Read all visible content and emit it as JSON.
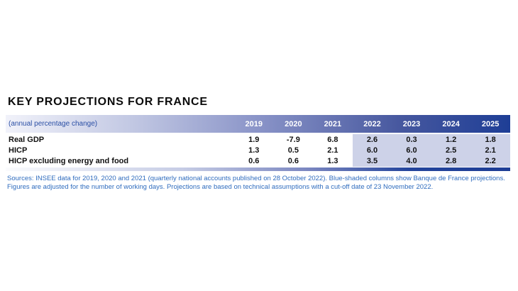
{
  "title": "KEY PROJECTIONS FOR FRANCE",
  "table": {
    "unit_label": "(annual percentage change)",
    "years": [
      "2019",
      "2020",
      "2021",
      "2022",
      "2023",
      "2024",
      "2025"
    ],
    "rows": [
      {
        "label": "Real GDP",
        "values": [
          "1.9",
          "-7.9",
          "6.8",
          "2.6",
          "0.3",
          "1.2",
          "1.8"
        ]
      },
      {
        "label": "HICP",
        "values": [
          "1.3",
          "0.5",
          "2.1",
          "6.0",
          "6.0",
          "2.5",
          "2.1"
        ]
      },
      {
        "label": "HICP excluding energy and food",
        "values": [
          "0.6",
          "0.6",
          "1.3",
          "3.5",
          "4.0",
          "2.8",
          "2.2"
        ]
      }
    ],
    "projection_start_index": 3
  },
  "footnote": {
    "line1": "Sources: INSEE data for 2019, 2020 and 2021 (quarterly national accounts published on 28 October 2022). Blue-shaded columns show Banque de France projections.",
    "line2": "Figures are adjusted for the number of working days. Projections are based on technical assumptions with a cut-off date of 23 November 2022."
  },
  "colors": {
    "header_gradient_start": "#f1f2fa",
    "header_gradient_end": "#1e3e96",
    "projection_shade": "#cdd2e8",
    "unit_text": "#2b4fa5",
    "note_text": "#2f6cbe",
    "title_text": "#0b0b0b",
    "value_text": "#111111"
  },
  "chart_data": {
    "type": "table",
    "title": "KEY PROJECTIONS FOR FRANCE",
    "unit": "annual percentage change",
    "columns": [
      "2019",
      "2020",
      "2021",
      "2022",
      "2023",
      "2024",
      "2025"
    ],
    "rows": [
      {
        "name": "Real GDP",
        "values": [
          1.9,
          -7.9,
          6.8,
          2.6,
          0.3,
          1.2,
          1.8
        ]
      },
      {
        "name": "HICP",
        "values": [
          1.3,
          0.5,
          2.1,
          6.0,
          6.0,
          2.5,
          2.1
        ]
      },
      {
        "name": "HICP excluding energy and food",
        "values": [
          0.6,
          0.6,
          1.3,
          3.5,
          4.0,
          2.8,
          2.2
        ]
      }
    ],
    "projection_columns": [
      "2022",
      "2023",
      "2024",
      "2025"
    ],
    "notes": "Blue-shaded columns show Banque de France projections; INSEE data for 2019-2021."
  }
}
